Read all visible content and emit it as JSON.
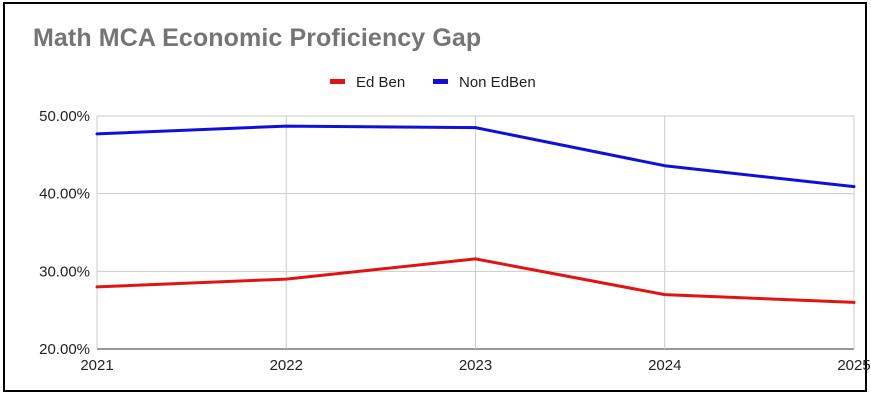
{
  "chart_data": {
    "type": "line",
    "title": "Math MCA Economic Proficiency Gap",
    "categories": [
      "2021",
      "2022",
      "2023",
      "2024",
      "2025"
    ],
    "series": [
      {
        "name": "Ed Ben",
        "color": "#e11414",
        "values": [
          28.0,
          29.0,
          31.6,
          27.0,
          26.0
        ]
      },
      {
        "name": "Non EdBen",
        "color": "#1010d8",
        "values": [
          47.7,
          48.7,
          48.5,
          43.6,
          40.9
        ]
      }
    ],
    "y_ticks": [
      "20.00%",
      "30.00%",
      "40.00%",
      "50.00%"
    ],
    "y_tick_values": [
      20,
      30,
      40,
      50
    ],
    "ylim": [
      20,
      50
    ],
    "legend_position": "top-center",
    "grid": true
  }
}
